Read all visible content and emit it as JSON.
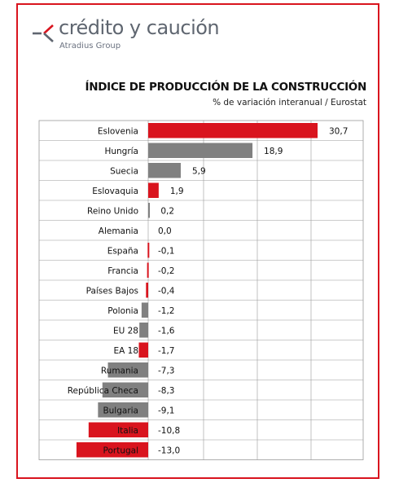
{
  "brand": {
    "name": "crédito y caución",
    "sub": "Atradius Group",
    "accent": "#d9141e",
    "text_color": "#5f6670"
  },
  "colors": {
    "highlight": "#d9141e",
    "default": "#808080",
    "border": "#d9141e",
    "grid": "#9a9a9a"
  },
  "chart_data": {
    "type": "bar",
    "orientation": "horizontal",
    "title": "ÍNDICE DE PRODUCCIÓN DE LA CONSTRUCCIÓN",
    "subtitle": "% de variación interanual / Eurostat",
    "categories": [
      "Eslovenia",
      "Hungría",
      "Suecia",
      "Eslovaquia",
      "Reino Unido",
      "Alemania",
      "España",
      "Francia",
      "Países Bajos",
      "Polonia",
      "EU 28",
      "EA 18",
      "Rumania",
      "República Checa",
      "Bulgaria",
      "Italia",
      "Portugal"
    ],
    "values": [
      30.7,
      18.9,
      5.9,
      1.9,
      0.2,
      0.0,
      -0.1,
      -0.2,
      -0.4,
      -1.2,
      -1.6,
      -1.7,
      -7.3,
      -8.3,
      -9.1,
      -10.8,
      -13.0
    ],
    "value_labels": [
      "30,7",
      "18,9",
      "5,9",
      "1,9",
      "0,2",
      "0,0",
      "-0,1",
      "-0,2",
      "-0,4",
      "-1,2",
      "-1,6",
      "-1,7",
      "-7,3",
      "-8,3",
      "-9,1",
      "-10,8",
      "-13,0"
    ],
    "highlighted": [
      true,
      false,
      false,
      true,
      false,
      false,
      true,
      true,
      true,
      false,
      false,
      true,
      false,
      false,
      false,
      true,
      true
    ],
    "xlim": [
      -20,
      40
    ],
    "grid": true,
    "legend": "none"
  }
}
